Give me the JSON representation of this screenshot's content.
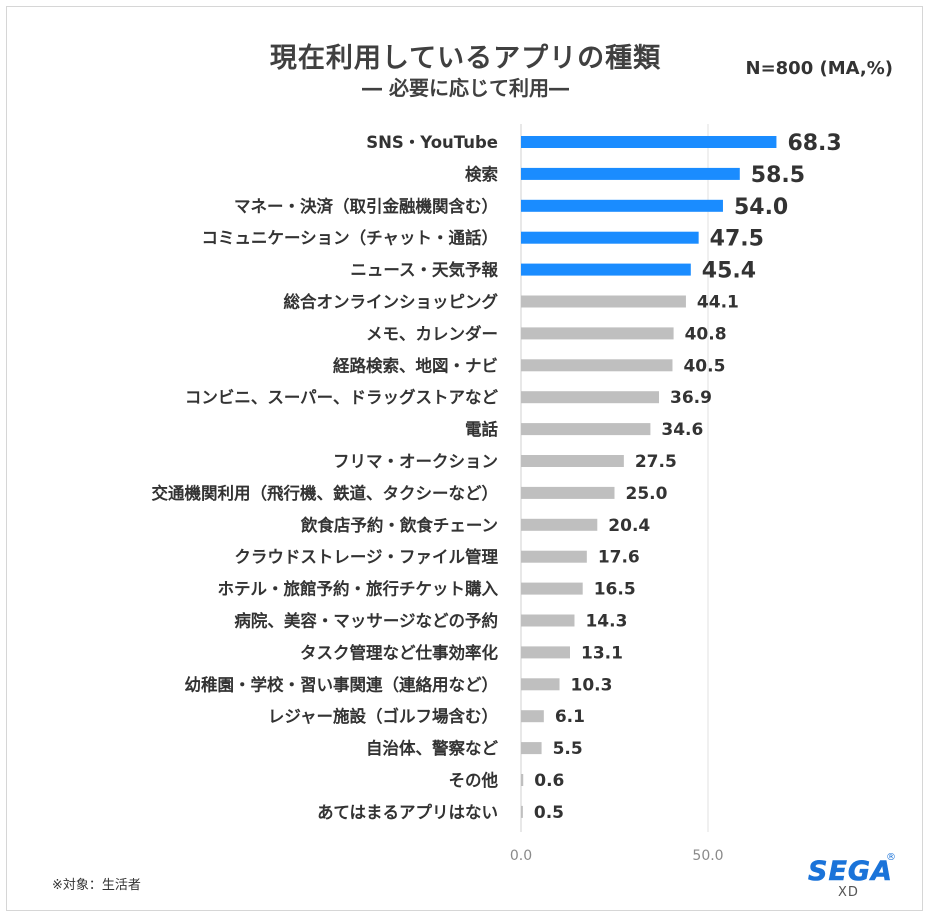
{
  "chart_data": {
    "type": "bar",
    "orientation": "horizontal",
    "title": "現在利用しているアプリの種類",
    "subtitle": "― 必要に応じて利用―",
    "n_label": "N=800 (MA,%)",
    "footnote": "※対象：生活者",
    "logo_text": "SEGA",
    "logo_sub": "XD",
    "logo_reg": "®",
    "xlim": [
      0,
      75
    ],
    "xticks": [
      0,
      50
    ],
    "xtick_labels": [
      "0.0",
      "50.0"
    ],
    "gridlines": true,
    "colors": {
      "highlight": "#1a8cff",
      "normal": "#bfbfbf"
    },
    "highlight_count": 5,
    "categories": [
      "SNS・YouTube",
      "検索",
      "マネー・決済（取引金融機関含む）",
      "コミュニケーション（チャット・通話）",
      "ニュース・天気予報",
      "総合オンラインショッピング",
      "メモ、カレンダー",
      "経路検索、地図・ナビ",
      "コンビニ、スーパー、ドラッグストアなど",
      "電話",
      "フリマ・オークション",
      "交通機関利用（飛行機、鉄道、タクシーなど）",
      "飲食店予約・飲食チェーン",
      "クラウドストレージ・ファイル管理",
      "ホテル・旅館予約・旅行チケット購入",
      "病院、美容・マッサージなどの予約",
      "タスク管理など仕事効率化",
      "幼稚園・学校・習い事関連（連絡用など）",
      "レジャー施設（ゴルフ場含む）",
      "自治体、警察など",
      "その他",
      "あてはまるアプリはない"
    ],
    "values": [
      68.3,
      58.5,
      54.0,
      47.5,
      45.4,
      44.1,
      40.8,
      40.5,
      36.9,
      34.6,
      27.5,
      25.0,
      20.4,
      17.6,
      16.5,
      14.3,
      13.1,
      10.3,
      6.1,
      5.5,
      0.6,
      0.5
    ],
    "value_labels": [
      "68.3",
      "58.5",
      "54.0",
      "47.5",
      "45.4",
      "44.1",
      "40.8",
      "40.5",
      "36.9",
      "34.6",
      "27.5",
      "25.0",
      "20.4",
      "17.6",
      "16.5",
      "14.3",
      "13.1",
      "10.3",
      "6.1",
      "5.5",
      "0.6",
      "0.5"
    ]
  }
}
